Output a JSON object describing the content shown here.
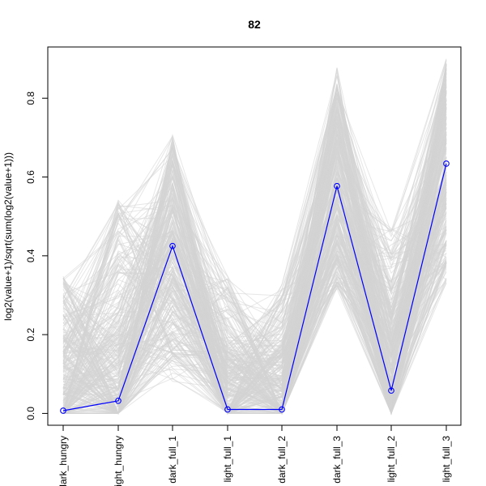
{
  "chart_data": {
    "type": "line",
    "title": "82",
    "ylabel": "log2(value+1)/sqrt(sum(log2(value+1)))",
    "xlabel": "",
    "categories": [
      "dark_hungry",
      "light_hungry",
      "dark_full_1",
      "light_full_1",
      "dark_full_2",
      "dark_full_3",
      "light_full_2",
      "light_full_3"
    ],
    "yticks": [
      0.0,
      0.2,
      0.4,
      0.6,
      0.8
    ],
    "ytick_labels": [
      "0.0",
      "0.2",
      "0.4",
      "0.6",
      "0.8"
    ],
    "ylim": [
      -0.03,
      0.93
    ],
    "grid": false,
    "legend": "none",
    "colors": {
      "highlight": "#0000ff",
      "background_lines": "#d3d3d3",
      "axis": "#000000"
    },
    "series": [
      {
        "values": [
          0.007,
          0.032,
          0.425,
          0.01,
          0.01,
          0.577,
          0.058,
          0.634
        ]
      }
    ],
    "background_envelope": {
      "min": [
        0.0,
        0.0,
        0.08,
        0.0,
        0.0,
        0.3,
        0.0,
        0.33
      ],
      "max": [
        0.35,
        0.55,
        0.71,
        0.35,
        0.33,
        0.88,
        0.47,
        0.9
      ]
    }
  }
}
